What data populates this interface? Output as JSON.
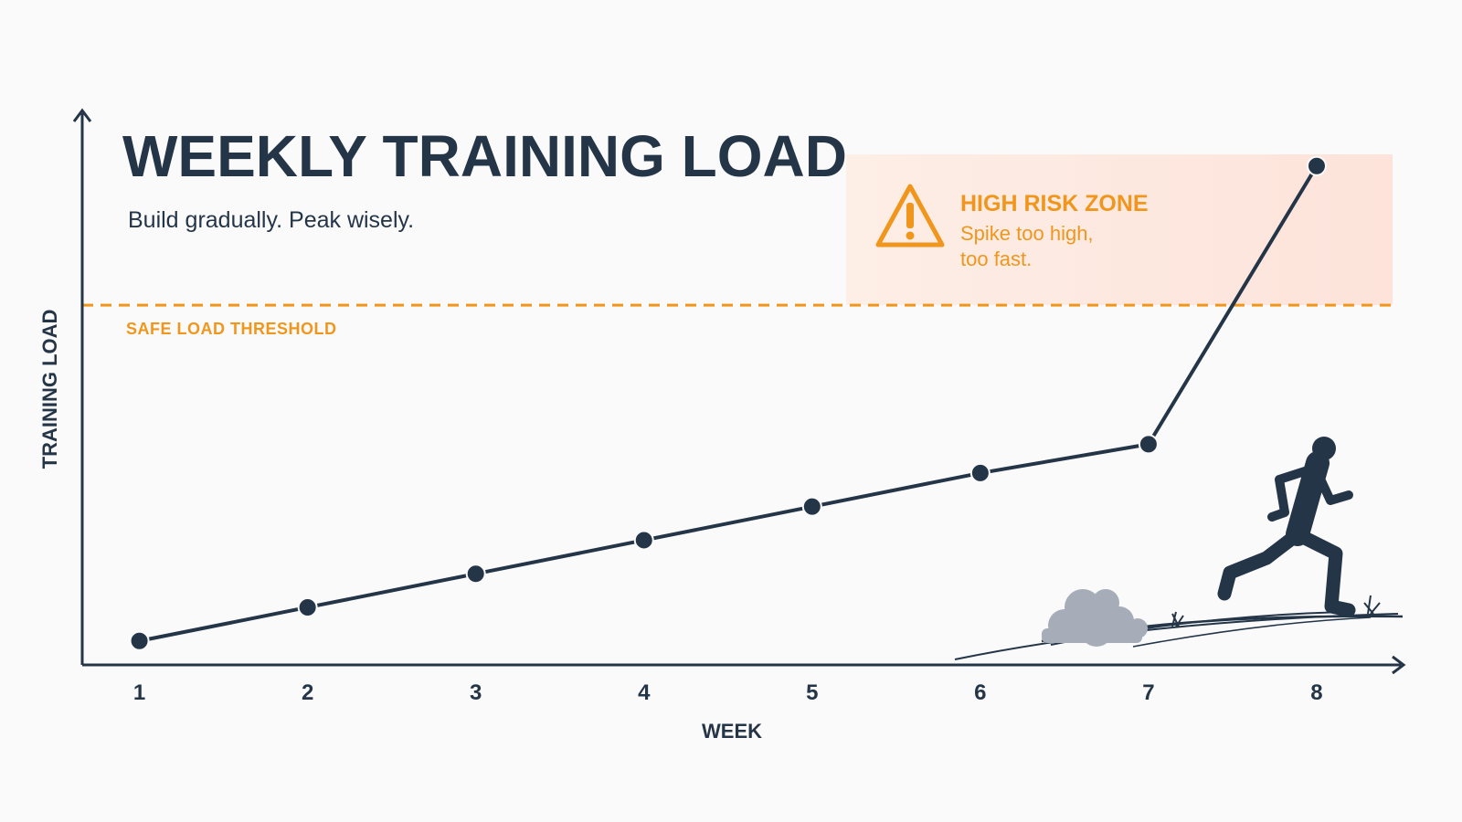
{
  "chart_data": {
    "type": "line",
    "title": "WEEKLY TRAINING LOAD",
    "subtitle": "Build gradually. Peak wisely.",
    "xlabel": "WEEK",
    "ylabel": "TRAINING LOAD",
    "x": [
      1,
      2,
      3,
      4,
      5,
      6,
      7,
      8
    ],
    "series": [
      {
        "values": [
          5,
          12,
          19,
          26,
          33,
          40,
          46,
          104
        ]
      }
    ],
    "ylim": [
      0,
      115
    ],
    "xlim": [
      0.66,
      8.5
    ],
    "grid": false,
    "threshold": {
      "value": 75,
      "label": "SAFE LOAD THRESHOLD",
      "style": "dashed"
    },
    "annotation": {
      "title": "HIGH RISK ZONE",
      "lines": [
        "Spike too high,",
        "too fast."
      ],
      "icon": "warning-triangle-icon"
    },
    "decoration": "runner-silhouette-icon",
    "colors": {
      "line": "#253548",
      "threshold": "#f0961c",
      "risk_zone": "#fde3da"
    }
  }
}
